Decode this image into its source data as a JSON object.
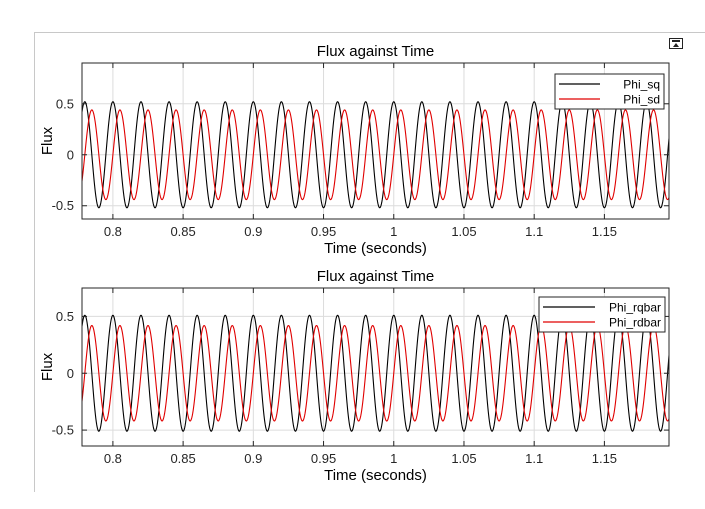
{
  "chart_data": [
    {
      "type": "line",
      "title": "Flux against Time",
      "xlabel": "Time (seconds)",
      "ylabel": "Flux",
      "xlim": [
        0.778,
        1.196
      ],
      "ylim": [
        -0.63,
        0.9
      ],
      "xticks": [
        0.8,
        0.85,
        0.9,
        0.95,
        1,
        1.05,
        1.1,
        1.15
      ],
      "xtick_labels": [
        "0.8",
        "0.85",
        "0.9",
        "0.95",
        "1",
        "1.05",
        "1.1",
        "1.15"
      ],
      "yticks": [
        -0.5,
        0,
        0.5
      ],
      "ytick_labels": [
        "-0.5",
        "0",
        "0.5"
      ],
      "grid": true,
      "legend_position": "top-right",
      "frequency_hz": 50,
      "series": [
        {
          "name": "Phi_sq",
          "color": "#000000",
          "amplitude": 0.52,
          "phase_deg": 90
        },
        {
          "name": "Phi_sd",
          "color": "#e00000",
          "amplitude": 0.44,
          "phase_deg": 0
        }
      ]
    },
    {
      "type": "line",
      "title": "Flux against Time",
      "xlabel": "Time (seconds)",
      "ylabel": "Flux",
      "xlim": [
        0.778,
        1.196
      ],
      "ylim": [
        -0.64,
        0.75
      ],
      "xticks": [
        0.8,
        0.85,
        0.9,
        0.95,
        1,
        1.05,
        1.1,
        1.15
      ],
      "xtick_labels": [
        "0.8",
        "0.85",
        "0.9",
        "0.95",
        "1",
        "1.05",
        "1.1",
        "1.15"
      ],
      "yticks": [
        -0.5,
        0,
        0.5
      ],
      "ytick_labels": [
        "-0.5",
        "0",
        "0.5"
      ],
      "grid": true,
      "legend_position": "top-right",
      "frequency_hz": 50,
      "series": [
        {
          "name": "Phi_rqbar",
          "color": "#000000",
          "amplitude": 0.51,
          "phase_deg": 90
        },
        {
          "name": "Phi_rdbar",
          "color": "#e00000",
          "amplitude": 0.42,
          "phase_deg": 0
        }
      ]
    }
  ]
}
